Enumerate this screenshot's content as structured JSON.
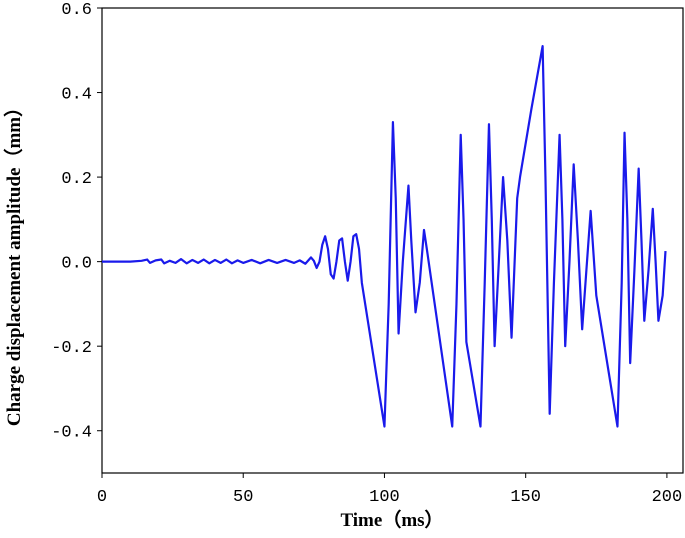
{
  "chart_data": {
    "type": "line",
    "xlabel": "Time（ms）",
    "ylabel": "Charge displacement amplitude（mm）",
    "color": "#1a1aeb",
    "xlim": [
      0,
      205.7
    ],
    "xticks": [
      0,
      50,
      100,
      150,
      200
    ],
    "ylim": [
      -0.5,
      0.6
    ],
    "yticks": [
      -0.4,
      -0.2,
      {
        "value": 0,
        "label": "0.0"
      },
      0.2,
      0.4,
      0.6
    ],
    "x": [
      0,
      10,
      14,
      16,
      17,
      19,
      21,
      22,
      24,
      26,
      28,
      30,
      32,
      34,
      36,
      38,
      40,
      42,
      44,
      46,
      48,
      50,
      53,
      56,
      59,
      62,
      65,
      68,
      70,
      72,
      74,
      75,
      76,
      77,
      78,
      79,
      80,
      81,
      82,
      83,
      84,
      85,
      86,
      87,
      88,
      89,
      90,
      91,
      92,
      100,
      101.5,
      103,
      104,
      105,
      106.5,
      108.5,
      109.5,
      111,
      112.5,
      114,
      115,
      124,
      125.5,
      127,
      128,
      129,
      134,
      135.5,
      137,
      138,
      139,
      140.5,
      142,
      143.5,
      145,
      147,
      148,
      152,
      156,
      157,
      158.5,
      160,
      162,
      163,
      164,
      165.5,
      167,
      168.5,
      170,
      171.5,
      173,
      175,
      182.5,
      184,
      185,
      186,
      187,
      188.5,
      190,
      191,
      192,
      193.5,
      195,
      196,
      197,
      198.5,
      199.5
    ],
    "values": [
      0,
      0,
      0.002,
      0.005,
      -0.003,
      0.003,
      0.005,
      -0.004,
      0.002,
      -0.003,
      0.006,
      -0.004,
      0.004,
      -0.003,
      0.005,
      -0.004,
      0.004,
      -0.003,
      0.005,
      -0.004,
      0.003,
      -0.003,
      0.004,
      -0.004,
      0.004,
      -0.003,
      0.004,
      -0.003,
      0.003,
      -0.005,
      0.01,
      0.002,
      -0.015,
      0,
      0.04,
      0.06,
      0.03,
      -0.03,
      -0.04,
      0,
      0.05,
      0.055,
      0,
      -0.045,
      0,
      0.06,
      0.065,
      0.03,
      -0.05,
      -0.39,
      -0.1,
      0.33,
      0.15,
      -0.17,
      0.0,
      0.18,
      0.05,
      -0.12,
      -0.05,
      0.075,
      0.03,
      -0.39,
      -0.1,
      0.3,
      0.1,
      -0.19,
      -0.39,
      -0.05,
      0.325,
      0.1,
      -0.2,
      0.0,
      0.2,
      0.05,
      -0.18,
      0.15,
      0.2,
      0.36,
      0.51,
      0.2,
      -0.36,
      -0.05,
      0.3,
      0.1,
      -0.2,
      0.0,
      0.23,
      0.05,
      -0.16,
      -0.02,
      0.12,
      -0.08,
      -0.39,
      -0.05,
      0.305,
      0.1,
      -0.24,
      -0.02,
      0.22,
      0.05,
      -0.14,
      -0.02,
      0.125,
      0.0,
      -0.14,
      -0.08,
      0.025
    ]
  }
}
